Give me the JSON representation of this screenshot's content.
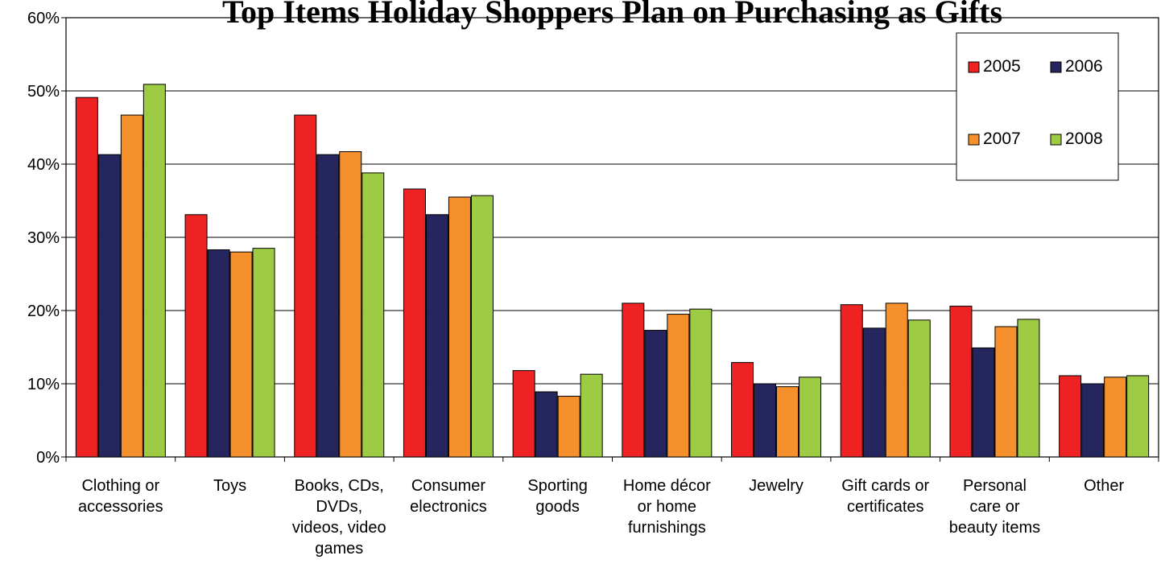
{
  "chart_data": {
    "type": "bar",
    "title": "Top Items Holiday Shoppers Plan on Purchasing as Gifts",
    "xlabel": "",
    "ylabel": "",
    "ylim": [
      0,
      60
    ],
    "yticks": [
      "0%",
      "10%",
      "20%",
      "30%",
      "40%",
      "50%",
      "60%"
    ],
    "categories": [
      [
        "Clothing or",
        "accessories"
      ],
      [
        "Toys"
      ],
      [
        "Books, CDs,",
        "DVDs,",
        "videos, video",
        "games"
      ],
      [
        "Consumer",
        "electronics"
      ],
      [
        "Sporting",
        "goods"
      ],
      [
        "Home décor",
        "or home",
        "furnishings"
      ],
      [
        "Jewelry"
      ],
      [
        "Gift cards or",
        "certificates"
      ],
      [
        "Personal",
        "care or",
        "beauty items"
      ],
      [
        "Other"
      ]
    ],
    "series": [
      {
        "name": "2005",
        "color": "#ee2222",
        "values": [
          49.1,
          33.1,
          46.7,
          36.6,
          11.8,
          21.0,
          12.9,
          20.8,
          20.6,
          11.1
        ]
      },
      {
        "name": "2006",
        "color": "#26265e",
        "values": [
          41.3,
          28.3,
          41.3,
          33.1,
          8.9,
          17.3,
          10.0,
          17.6,
          14.9,
          10.0
        ]
      },
      {
        "name": "2007",
        "color": "#f5902c",
        "values": [
          46.7,
          28.0,
          41.7,
          35.5,
          8.3,
          19.5,
          9.6,
          21.0,
          17.8,
          10.9
        ]
      },
      {
        "name": "2008",
        "color": "#9dcb44",
        "values": [
          50.9,
          28.5,
          38.8,
          35.7,
          11.3,
          20.2,
          10.9,
          18.7,
          18.8,
          11.1
        ]
      }
    ],
    "legend_position": "top-right",
    "grid": true
  }
}
